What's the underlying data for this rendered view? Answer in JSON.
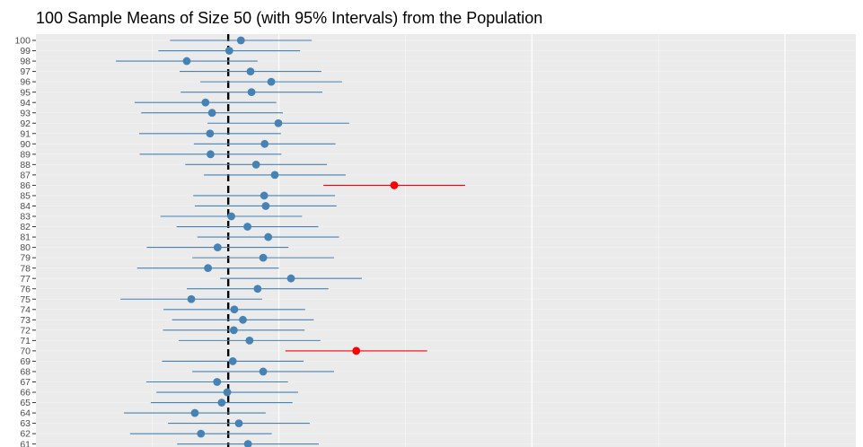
{
  "chart_data": {
    "type": "scatter",
    "title": "100 Sample Means of Size 50 (with 95% Intervals) from the Population",
    "xlabel": "",
    "ylabel": "",
    "population_mean": 50.0,
    "ylim": [
      60.5,
      100.5
    ],
    "xlim": [
      46.2,
      62.4
    ],
    "vertical_gridlines": [
      51,
      56,
      61
    ],
    "grid": true,
    "colors": {
      "captured": "#4682B4",
      "missed": "#FF0000",
      "panel_background": "#EBEBEB",
      "gridline": "#FFFFFF",
      "reference_line": "#000000",
      "tick_text": "#4D4D4D"
    },
    "points": [
      {
        "sample": 100,
        "mean": 50.25,
        "lower": 48.85,
        "upper": 51.65,
        "captures_mean": true
      },
      {
        "sample": 99,
        "mean": 50.02,
        "lower": 48.62,
        "upper": 51.42,
        "captures_mean": true
      },
      {
        "sample": 98,
        "mean": 49.18,
        "lower": 47.78,
        "upper": 50.58,
        "captures_mean": true
      },
      {
        "sample": 97,
        "mean": 50.44,
        "lower": 49.04,
        "upper": 51.84,
        "captures_mean": true
      },
      {
        "sample": 96,
        "mean": 50.85,
        "lower": 49.45,
        "upper": 52.25,
        "captures_mean": true
      },
      {
        "sample": 95,
        "mean": 50.46,
        "lower": 49.06,
        "upper": 51.86,
        "captures_mean": true
      },
      {
        "sample": 94,
        "mean": 49.55,
        "lower": 48.15,
        "upper": 50.95,
        "captures_mean": true
      },
      {
        "sample": 93,
        "mean": 49.68,
        "lower": 48.28,
        "upper": 51.08,
        "captures_mean": true
      },
      {
        "sample": 92,
        "mean": 50.99,
        "lower": 49.59,
        "upper": 52.39,
        "captures_mean": true
      },
      {
        "sample": 91,
        "mean": 49.64,
        "lower": 48.24,
        "upper": 51.04,
        "captures_mean": true
      },
      {
        "sample": 90,
        "mean": 50.72,
        "lower": 49.32,
        "upper": 52.12,
        "captures_mean": true
      },
      {
        "sample": 89,
        "mean": 49.65,
        "lower": 48.25,
        "upper": 51.05,
        "captures_mean": true
      },
      {
        "sample": 88,
        "mean": 50.55,
        "lower": 49.15,
        "upper": 51.95,
        "captures_mean": true
      },
      {
        "sample": 87,
        "mean": 50.92,
        "lower": 49.52,
        "upper": 52.32,
        "captures_mean": true
      },
      {
        "sample": 86,
        "mean": 53.28,
        "lower": 51.88,
        "upper": 54.68,
        "captures_mean": false
      },
      {
        "sample": 85,
        "mean": 50.71,
        "lower": 49.31,
        "upper": 52.11,
        "captures_mean": true
      },
      {
        "sample": 84,
        "mean": 50.74,
        "lower": 49.34,
        "upper": 52.14,
        "captures_mean": true
      },
      {
        "sample": 83,
        "mean": 50.06,
        "lower": 48.66,
        "upper": 51.46,
        "captures_mean": true
      },
      {
        "sample": 82,
        "mean": 50.38,
        "lower": 48.98,
        "upper": 51.78,
        "captures_mean": true
      },
      {
        "sample": 81,
        "mean": 50.79,
        "lower": 49.39,
        "upper": 52.19,
        "captures_mean": true
      },
      {
        "sample": 80,
        "mean": 49.79,
        "lower": 48.39,
        "upper": 51.19,
        "captures_mean": true
      },
      {
        "sample": 79,
        "mean": 50.69,
        "lower": 49.29,
        "upper": 52.09,
        "captures_mean": true
      },
      {
        "sample": 78,
        "mean": 49.6,
        "lower": 48.2,
        "upper": 51.0,
        "captures_mean": true
      },
      {
        "sample": 77,
        "mean": 51.24,
        "lower": 49.84,
        "upper": 52.64,
        "captures_mean": true
      },
      {
        "sample": 76,
        "mean": 50.58,
        "lower": 49.18,
        "upper": 51.98,
        "captures_mean": true
      },
      {
        "sample": 75,
        "mean": 49.27,
        "lower": 47.87,
        "upper": 50.67,
        "captures_mean": true
      },
      {
        "sample": 74,
        "mean": 50.12,
        "lower": 48.72,
        "upper": 51.52,
        "captures_mean": true
      },
      {
        "sample": 73,
        "mean": 50.29,
        "lower": 48.89,
        "upper": 51.69,
        "captures_mean": true
      },
      {
        "sample": 72,
        "mean": 50.11,
        "lower": 48.71,
        "upper": 51.51,
        "captures_mean": true
      },
      {
        "sample": 71,
        "mean": 50.42,
        "lower": 49.02,
        "upper": 51.82,
        "captures_mean": true
      },
      {
        "sample": 70,
        "mean": 52.53,
        "lower": 51.13,
        "upper": 53.93,
        "captures_mean": false
      },
      {
        "sample": 69,
        "mean": 50.09,
        "lower": 48.69,
        "upper": 51.49,
        "captures_mean": true
      },
      {
        "sample": 68,
        "mean": 50.69,
        "lower": 49.29,
        "upper": 52.09,
        "captures_mean": true
      },
      {
        "sample": 67,
        "mean": 49.78,
        "lower": 48.38,
        "upper": 51.18,
        "captures_mean": true
      },
      {
        "sample": 66,
        "mean": 49.98,
        "lower": 48.58,
        "upper": 51.38,
        "captures_mean": true
      },
      {
        "sample": 65,
        "mean": 49.87,
        "lower": 48.47,
        "upper": 51.27,
        "captures_mean": true
      },
      {
        "sample": 64,
        "mean": 49.34,
        "lower": 47.94,
        "upper": 50.74,
        "captures_mean": true
      },
      {
        "sample": 63,
        "mean": 50.21,
        "lower": 48.81,
        "upper": 51.61,
        "captures_mean": true
      },
      {
        "sample": 62,
        "mean": 49.46,
        "lower": 48.06,
        "upper": 50.86,
        "captures_mean": true
      },
      {
        "sample": 61,
        "mean": 50.39,
        "lower": 48.99,
        "upper": 51.79,
        "captures_mean": true
      }
    ]
  }
}
